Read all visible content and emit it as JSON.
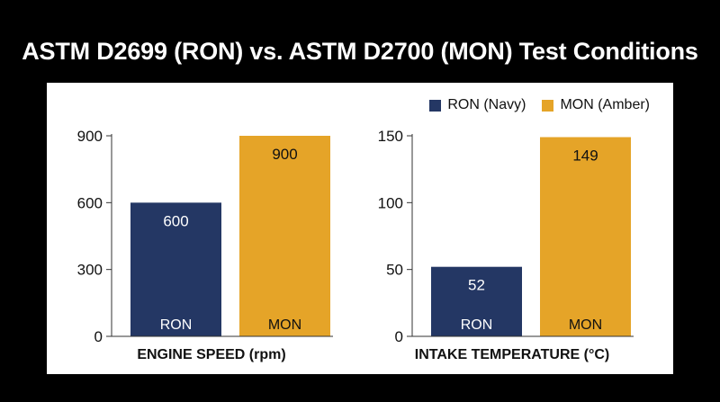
{
  "title": "ASTM D2699 (RON) vs. ASTM D2700 (MON) Test Conditions",
  "colors": {
    "ron": "#243764",
    "mon": "#E5A428",
    "background": "#000000",
    "panel": "#ffffff"
  },
  "legend": [
    {
      "label": "RON (Navy)",
      "color": "#243764"
    },
    {
      "label": "MON (Amber)",
      "color": "#E5A428"
    }
  ],
  "chart_data": [
    {
      "type": "bar",
      "xlabel": "ENGINE SPEED (rpm)",
      "categories": [
        "RON",
        "MON"
      ],
      "values": [
        600,
        900
      ],
      "value_labels": [
        "600",
        "900"
      ],
      "ylim": [
        0,
        900
      ],
      "yticks": [
        0,
        300,
        600,
        900
      ],
      "grid": false
    },
    {
      "type": "bar",
      "xlabel": "INTAKE TEMPERATURE (°C)",
      "categories": [
        "RON",
        "MON"
      ],
      "values": [
        52,
        149
      ],
      "value_labels": [
        "52",
        "149"
      ],
      "ylim": [
        0,
        150
      ],
      "yticks": [
        0,
        50,
        100,
        150
      ],
      "grid": false
    }
  ]
}
